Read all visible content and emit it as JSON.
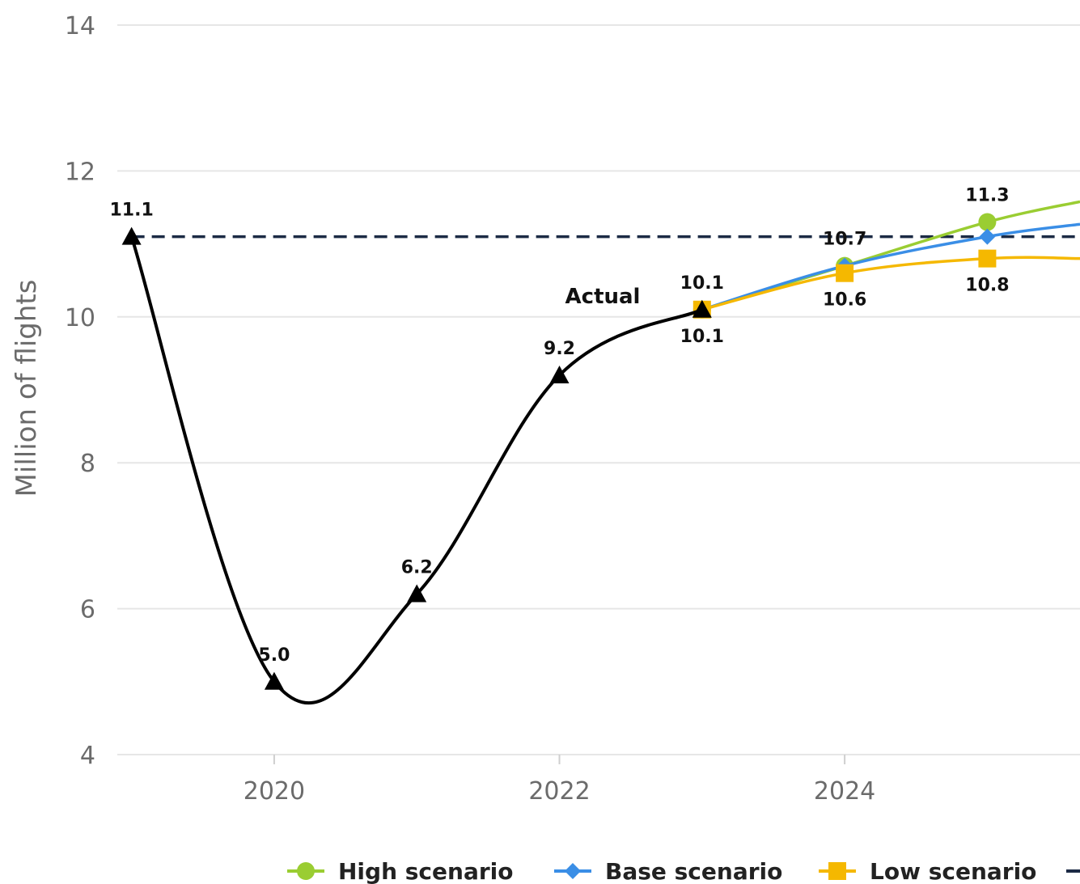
{
  "chart_data": {
    "type": "line",
    "ylabel": "Million of flights",
    "xlabel": "",
    "x_ticks": [
      "2020",
      "2022",
      "2024"
    ],
    "y_ticks": [
      "4",
      "6",
      "8",
      "10",
      "12",
      "14"
    ],
    "xlim": [
      2018.9,
      2025.65
    ],
    "ylim": [
      4,
      14
    ],
    "grid": true,
    "legend_position": "bottom",
    "annotation": "Actual",
    "reference_line": {
      "value": 11.1,
      "style": "dashed",
      "color": "#1c2b45"
    },
    "series": [
      {
        "name": "Actual",
        "in_legend": false,
        "color": "#000000",
        "marker": "triangle",
        "points": [
          {
            "x": 2019,
            "y": 11.1,
            "label": "11.1",
            "label_pos": "above"
          },
          {
            "x": 2020,
            "y": 5.0,
            "label": "5.0",
            "label_pos": "above"
          },
          {
            "x": 2021,
            "y": 6.2,
            "label": "6.2",
            "label_pos": "above"
          },
          {
            "x": 2022,
            "y": 9.2,
            "label": "9.2",
            "label_pos": "above"
          },
          {
            "x": 2023,
            "y": 10.1,
            "label": "10.1",
            "label_pos": "below"
          }
        ]
      },
      {
        "name": "High scenario",
        "in_legend": true,
        "color": "#9acd32",
        "marker": "circle",
        "points": [
          {
            "x": 2023,
            "y": 10.1,
            "label": "10.1",
            "label_pos": "above"
          },
          {
            "x": 2024,
            "y": 10.7,
            "label": "",
            "label_pos": "above"
          },
          {
            "x": 2025,
            "y": 11.3,
            "label": "11.3",
            "label_pos": "above"
          },
          {
            "x": 2025.65,
            "y": 11.58,
            "label": "",
            "label_pos": "above"
          }
        ]
      },
      {
        "name": "Base scenario",
        "in_legend": true,
        "color": "#3a8ee6",
        "marker": "diamond",
        "points": [
          {
            "x": 2023,
            "y": 10.1,
            "label": "",
            "label_pos": "above"
          },
          {
            "x": 2024,
            "y": 10.7,
            "label": "10.7",
            "label_pos": "above"
          },
          {
            "x": 2025,
            "y": 11.1,
            "label": "",
            "label_pos": "above"
          },
          {
            "x": 2025.65,
            "y": 11.27,
            "label": "",
            "label_pos": "above"
          }
        ]
      },
      {
        "name": "Low scenario",
        "in_legend": true,
        "color": "#f5b800",
        "marker": "square",
        "points": [
          {
            "x": 2023,
            "y": 10.1,
            "label": "",
            "label_pos": "above"
          },
          {
            "x": 2024,
            "y": 10.6,
            "label": "10.6",
            "label_pos": "below"
          },
          {
            "x": 2025,
            "y": 10.8,
            "label": "10.8",
            "label_pos": "below"
          },
          {
            "x": 2025.65,
            "y": 10.8,
            "label": "",
            "label_pos": "below"
          }
        ]
      }
    ],
    "legend": [
      {
        "name": "High scenario",
        "color": "#9acd32",
        "marker": "circle"
      },
      {
        "name": "Base scenario",
        "color": "#3a8ee6",
        "marker": "diamond"
      },
      {
        "name": "Low scenario",
        "color": "#f5b800",
        "marker": "square"
      },
      {
        "name": "",
        "color": "#1c2b45",
        "marker": "dash"
      }
    ],
    "colors": {
      "grid": "#e6e6e6",
      "axis_text": "#6b6b6b"
    }
  }
}
